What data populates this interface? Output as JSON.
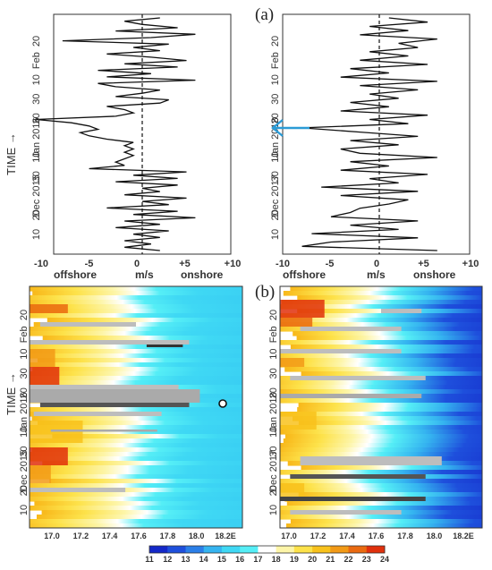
{
  "colors": {
    "line": "#111111",
    "arrow": "#2b9bd6",
    "frame": "#333333",
    "missing": "#bdbdbd"
  },
  "chart_data": [
    {
      "type": "line",
      "panel": "a-left",
      "title": "(a)",
      "xlabel": "m/s",
      "xlim": [
        -10,
        10
      ],
      "xticks": [
        "-10",
        "-5",
        "0",
        "+5",
        "+10"
      ],
      "x_side_labels": [
        "offshore",
        "onshore"
      ],
      "time_axis_label": "TIME →",
      "date_labels": [
        "10",
        "20",
        "Dec 2015",
        "30",
        "10",
        "Jan 2016",
        "20",
        "30",
        "10",
        "Feb",
        "20"
      ],
      "values": [
        2,
        -2,
        1,
        -2,
        2,
        -1,
        3,
        -3,
        2,
        -2,
        6,
        -1,
        4,
        -4,
        3,
        0,
        5,
        -2,
        2,
        0,
        4,
        -3,
        4,
        -1,
        5,
        -6,
        -2,
        -3,
        -2,
        -1,
        -2,
        -1,
        -2,
        -1,
        -4,
        -6,
        -7,
        -5,
        -6,
        -8,
        -12,
        -3,
        -1,
        -2,
        -4,
        2,
        3,
        -3,
        0,
        2,
        -3,
        -5,
        6,
        -4,
        1,
        -5,
        4,
        -2,
        5,
        1,
        -4,
        2,
        -1,
        3,
        -9,
        1,
        6,
        -3,
        4,
        0,
        -2,
        2
      ],
      "reference_line": 0
    },
    {
      "type": "line",
      "panel": "a-right",
      "xlabel": "m/s",
      "xlim": [
        -10,
        10
      ],
      "xticks": [
        "-10",
        "-5",
        "0",
        "+5",
        "+10"
      ],
      "x_side_labels": [
        "offshore",
        "onshore"
      ],
      "date_labels": [
        "10",
        "20",
        "Dec 2017",
        "30",
        "10",
        "Jan 2018",
        "20",
        "30",
        "10",
        "Feb",
        "20"
      ],
      "values": [
        6,
        -8,
        -5,
        4,
        -7,
        2,
        -3,
        4,
        -5,
        -3,
        -2,
        1,
        3,
        -4,
        4,
        -6,
        2,
        -1,
        5,
        -4,
        1,
        -3,
        6,
        -2,
        -4,
        2,
        -3,
        4,
        -2,
        -8,
        3,
        -1,
        5,
        -4,
        1,
        -3,
        2,
        -1,
        4,
        -2,
        6,
        -4,
        1,
        -3,
        5,
        -2,
        3,
        -1,
        4,
        2,
        6,
        -2,
        3,
        -1,
        5,
        1
      ],
      "reference_line": 0,
      "arrow_marker": "Jan 2018 ~18"
    },
    {
      "type": "heatmap",
      "panel": "b-left",
      "title": "(b)",
      "xlabel": "E",
      "xticks": [
        "17.0",
        "17.2",
        "17.4",
        "17.6",
        "17.8",
        "18.0",
        "18.2E"
      ],
      "time_axis_label": "TIME →",
      "date_labels": [
        "10",
        "20",
        "Dec 2015",
        "30",
        "10",
        "Jan 2016",
        "20",
        "30",
        "10",
        "Feb",
        "20"
      ],
      "marker": "open circle near 18.1E"
    },
    {
      "type": "heatmap",
      "panel": "b-right",
      "xlabel": "E",
      "xticks": [
        "17.0",
        "17.2",
        "17.4",
        "17.6",
        "17.8",
        "18.0",
        "18.2E"
      ],
      "date_labels": [
        "10",
        "20",
        "Dec 2017",
        "30",
        "10",
        "Jan 2018",
        "20",
        "30",
        "10",
        "Feb",
        "20"
      ]
    }
  ],
  "colorbar": {
    "ticks": [
      "11",
      "12",
      "13",
      "14",
      "15",
      "16",
      "17",
      "18",
      "19",
      "20",
      "21",
      "22",
      "23",
      "24"
    ],
    "colors": [
      "#1428c8",
      "#1e4fdc",
      "#2b7fe8",
      "#35b4f0",
      "#3fd8f4",
      "#55eef6",
      "#ffffff",
      "#fdf5a8",
      "#fde24a",
      "#f8c21c",
      "#f29a16",
      "#ea6a10",
      "#e0300c"
    ]
  }
}
